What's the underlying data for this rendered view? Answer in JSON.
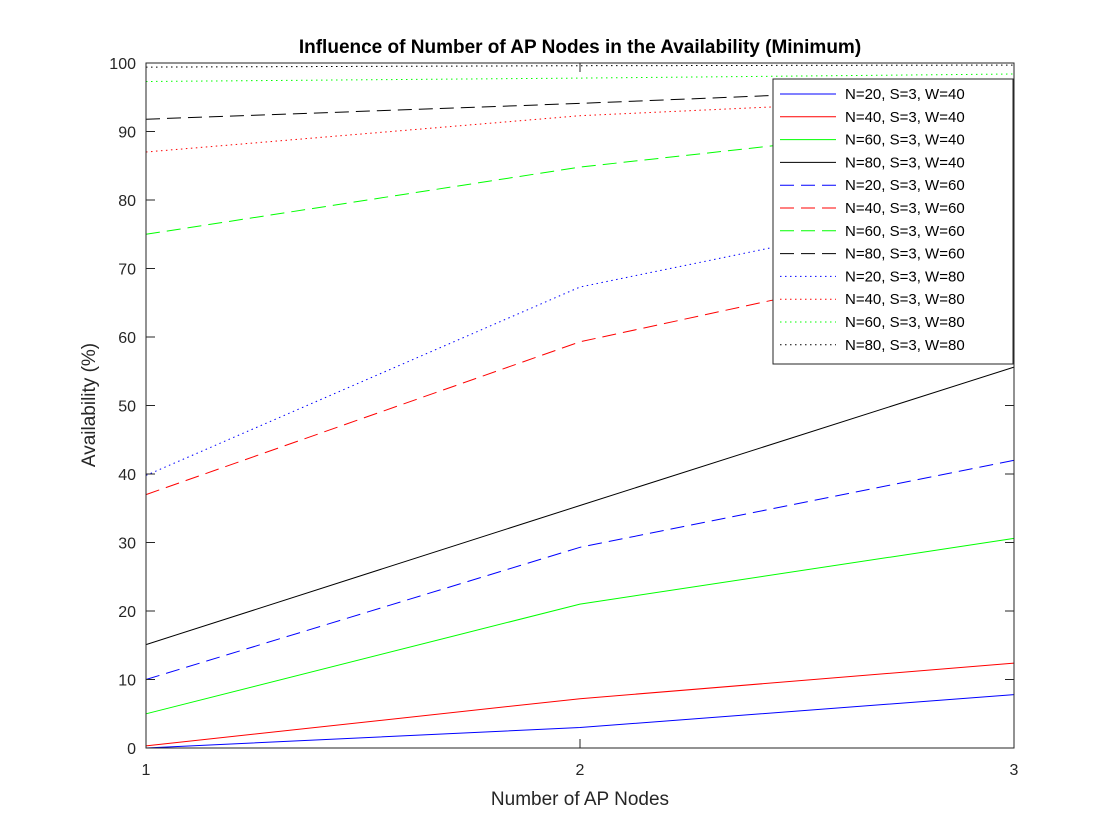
{
  "chart_data": {
    "type": "line",
    "title": "Influence of Number of AP Nodes in the Availability (Minimum)",
    "xlabel": "Number of AP Nodes",
    "ylabel": "Availability (%)",
    "xlim": [
      1,
      3
    ],
    "ylim": [
      0,
      100
    ],
    "x_ticks": [
      "1",
      "2",
      "3"
    ],
    "y_ticks": [
      "0",
      "10",
      "20",
      "30",
      "40",
      "50",
      "60",
      "70",
      "80",
      "90",
      "100"
    ],
    "grid": false,
    "legend_position": "top-right",
    "x": [
      1,
      2,
      3
    ],
    "series": [
      {
        "name": "N=20, S=3, W=40",
        "values": [
          0.0,
          3.0,
          7.8
        ],
        "color": "#0000ff",
        "style": "solid"
      },
      {
        "name": "N=40, S=3, W=40",
        "values": [
          0.3,
          7.2,
          12.4
        ],
        "color": "#ff0000",
        "style": "solid"
      },
      {
        "name": "N=60, S=3, W=40",
        "values": [
          5.0,
          21.0,
          30.6
        ],
        "color": "#00ff00",
        "style": "solid"
      },
      {
        "name": "N=80, S=3, W=40",
        "values": [
          15.1,
          35.4,
          55.6
        ],
        "color": "#000000",
        "style": "solid"
      },
      {
        "name": "N=20, S=3, W=60",
        "values": [
          10.0,
          29.3,
          42.0
        ],
        "color": "#0000ff",
        "style": "dashed"
      },
      {
        "name": "N=40, S=3, W=60",
        "values": [
          37.0,
          59.3,
          73.0
        ],
        "color": "#ff0000",
        "style": "dashed"
      },
      {
        "name": "N=60, S=3, W=60",
        "values": [
          75.0,
          84.8,
          91.8
        ],
        "color": "#00ff00",
        "style": "dashed"
      },
      {
        "name": "N=80, S=3, W=60",
        "values": [
          91.8,
          94.1,
          96.7
        ],
        "color": "#000000",
        "style": "dashed"
      },
      {
        "name": "N=20, S=3, W=80",
        "values": [
          39.8,
          67.3,
          80.3
        ],
        "color": "#0000ff",
        "style": "dotted"
      },
      {
        "name": "N=40, S=3, W=80",
        "values": [
          87.0,
          92.3,
          95.2
        ],
        "color": "#ff0000",
        "style": "dotted"
      },
      {
        "name": "N=60, S=3, W=80",
        "values": [
          97.3,
          97.8,
          98.4
        ],
        "color": "#00ff00",
        "style": "dotted"
      },
      {
        "name": "N=80, S=3, W=80",
        "values": [
          99.4,
          99.6,
          99.7
        ],
        "color": "#000000",
        "style": "dotted"
      }
    ]
  }
}
